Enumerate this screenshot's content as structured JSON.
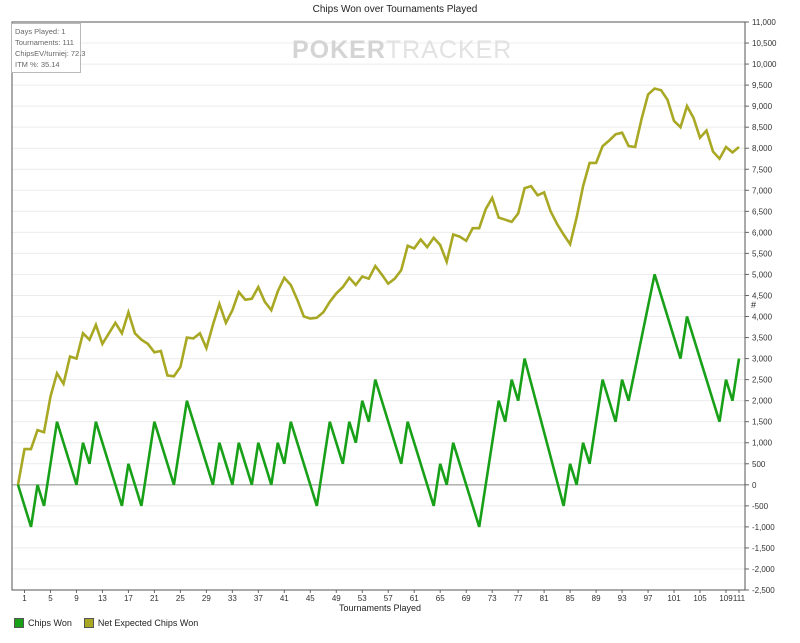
{
  "chart_data": {
    "type": "line",
    "title": "Chips Won over Tournaments Played",
    "xlabel": "Tournaments Played",
    "ylabel": "#",
    "xlim": [
      0,
      111
    ],
    "ylim": [
      -2500,
      11000
    ],
    "x_ticks": [
      1,
      5,
      9,
      13,
      17,
      21,
      25,
      29,
      33,
      37,
      41,
      45,
      49,
      53,
      57,
      61,
      65,
      69,
      73,
      77,
      81,
      85,
      89,
      93,
      97,
      101,
      105,
      109,
      111
    ],
    "y_ticks": [
      -2500,
      -2000,
      -1500,
      -1000,
      -500,
      0,
      500,
      1000,
      1500,
      2000,
      2500,
      3000,
      3500,
      4000,
      4500,
      5000,
      5500,
      6000,
      6500,
      7000,
      7500,
      8000,
      8500,
      9000,
      9500,
      10000,
      10500,
      11000
    ],
    "y_tick_labels": [
      "-2,500",
      "-2,000",
      "-1,500",
      "-1,000",
      "-500",
      "0",
      "500",
      "1,000",
      "1,500",
      "2,000",
      "2,500",
      "3,000",
      "3,500",
      "4,000",
      "4,500",
      "5,000",
      "5,500",
      "6,000",
      "6,500",
      "7,000",
      "7,500",
      "8,000",
      "8,500",
      "9,000",
      "9,500",
      "10,000",
      "10,500",
      "11,000"
    ],
    "grid": true,
    "legend_position": "bottom-left",
    "series": [
      {
        "name": "Chips Won",
        "color": "#19a019",
        "points": [
          [
            0,
            0
          ],
          [
            2,
            -1000
          ],
          [
            3,
            0
          ],
          [
            4,
            -500
          ],
          [
            6,
            1500
          ],
          [
            9,
            0
          ],
          [
            10,
            1000
          ],
          [
            11,
            500
          ],
          [
            12,
            1500
          ],
          [
            16,
            -500
          ],
          [
            17,
            500
          ],
          [
            19,
            -500
          ],
          [
            21,
            1500
          ],
          [
            24,
            0
          ],
          [
            26,
            2000
          ],
          [
            30,
            0
          ],
          [
            31,
            1000
          ],
          [
            33,
            0
          ],
          [
            34,
            1000
          ],
          [
            36,
            0
          ],
          [
            37,
            1000
          ],
          [
            39,
            0
          ],
          [
            40,
            1000
          ],
          [
            41,
            500
          ],
          [
            42,
            1500
          ],
          [
            46,
            -500
          ],
          [
            48,
            1500
          ],
          [
            50,
            500
          ],
          [
            51,
            1500
          ],
          [
            52,
            1000
          ],
          [
            53,
            2000
          ],
          [
            54,
            1500
          ],
          [
            55,
            2500
          ],
          [
            59,
            500
          ],
          [
            60,
            1500
          ],
          [
            64,
            -500
          ],
          [
            65,
            500
          ],
          [
            66,
            0
          ],
          [
            67,
            1000
          ],
          [
            71,
            -1000
          ],
          [
            74,
            2000
          ],
          [
            75,
            1500
          ],
          [
            76,
            2500
          ],
          [
            77,
            2000
          ],
          [
            78,
            3000
          ],
          [
            84,
            -500
          ],
          [
            85,
            500
          ],
          [
            86,
            0
          ],
          [
            87,
            1000
          ],
          [
            88,
            500
          ],
          [
            90,
            2500
          ],
          [
            92,
            1500
          ],
          [
            93,
            2500
          ],
          [
            94,
            2000
          ],
          [
            98,
            5000
          ],
          [
            102,
            3000
          ],
          [
            103,
            4000
          ],
          [
            108,
            1500
          ],
          [
            109,
            2500
          ],
          [
            110,
            2000
          ],
          [
            111,
            3000
          ]
        ]
      },
      {
        "name": "Net Expected Chips Won",
        "color": "#a8a825",
        "points": [
          [
            0,
            0
          ],
          [
            1,
            850
          ],
          [
            2,
            850
          ],
          [
            3,
            1300
          ],
          [
            4,
            1250
          ],
          [
            5,
            2100
          ],
          [
            6,
            2650
          ],
          [
            7,
            2400
          ],
          [
            8,
            3050
          ],
          [
            9,
            3000
          ],
          [
            10,
            3600
          ],
          [
            11,
            3450
          ],
          [
            12,
            3800
          ],
          [
            13,
            3350
          ],
          [
            14,
            3600
          ],
          [
            15,
            3850
          ],
          [
            16,
            3600
          ],
          [
            17,
            4100
          ],
          [
            18,
            3600
          ],
          [
            19,
            3450
          ],
          [
            20,
            3350
          ],
          [
            21,
            3150
          ],
          [
            22,
            3180
          ],
          [
            23,
            2600
          ],
          [
            24,
            2580
          ],
          [
            25,
            2800
          ],
          [
            26,
            3500
          ],
          [
            27,
            3480
          ],
          [
            28,
            3600
          ],
          [
            29,
            3250
          ],
          [
            30,
            3800
          ],
          [
            31,
            4300
          ],
          [
            32,
            3850
          ],
          [
            33,
            4150
          ],
          [
            34,
            4580
          ],
          [
            35,
            4400
          ],
          [
            36,
            4420
          ],
          [
            37,
            4700
          ],
          [
            38,
            4350
          ],
          [
            39,
            4150
          ],
          [
            40,
            4600
          ],
          [
            41,
            4920
          ],
          [
            42,
            4750
          ],
          [
            43,
            4400
          ],
          [
            44,
            4000
          ],
          [
            45,
            3950
          ],
          [
            46,
            3970
          ],
          [
            47,
            4100
          ],
          [
            48,
            4350
          ],
          [
            49,
            4550
          ],
          [
            50,
            4700
          ],
          [
            51,
            4920
          ],
          [
            52,
            4750
          ],
          [
            53,
            4950
          ],
          [
            54,
            4900
          ],
          [
            55,
            5200
          ],
          [
            56,
            5000
          ],
          [
            57,
            4780
          ],
          [
            58,
            4900
          ],
          [
            59,
            5100
          ],
          [
            60,
            5680
          ],
          [
            61,
            5620
          ],
          [
            62,
            5830
          ],
          [
            63,
            5650
          ],
          [
            64,
            5870
          ],
          [
            65,
            5700
          ],
          [
            66,
            5300
          ],
          [
            67,
            5950
          ],
          [
            68,
            5900
          ],
          [
            69,
            5800
          ],
          [
            70,
            6100
          ],
          [
            71,
            6100
          ],
          [
            72,
            6550
          ],
          [
            73,
            6820
          ],
          [
            74,
            6350
          ],
          [
            75,
            6300
          ],
          [
            76,
            6250
          ],
          [
            77,
            6450
          ],
          [
            78,
            7050
          ],
          [
            79,
            7100
          ],
          [
            80,
            6880
          ],
          [
            81,
            6950
          ],
          [
            82,
            6500
          ],
          [
            83,
            6200
          ],
          [
            84,
            5950
          ],
          [
            85,
            5720
          ],
          [
            86,
            6350
          ],
          [
            87,
            7100
          ],
          [
            88,
            7650
          ],
          [
            89,
            7650
          ],
          [
            90,
            8050
          ],
          [
            91,
            8180
          ],
          [
            92,
            8330
          ],
          [
            93,
            8370
          ],
          [
            94,
            8050
          ],
          [
            95,
            8030
          ],
          [
            96,
            8700
          ],
          [
            97,
            9280
          ],
          [
            98,
            9420
          ],
          [
            99,
            9380
          ],
          [
            100,
            9150
          ],
          [
            101,
            8650
          ],
          [
            102,
            8500
          ],
          [
            103,
            9000
          ],
          [
            104,
            8720
          ],
          [
            105,
            8250
          ],
          [
            106,
            8420
          ],
          [
            107,
            7920
          ],
          [
            108,
            7750
          ],
          [
            109,
            8030
          ],
          [
            110,
            7900
          ],
          [
            111,
            8030
          ]
        ]
      }
    ],
    "info_box": [
      "Days Played: 1",
      "Tournaments: 111",
      "ChipsEV/turniej: 72.3",
      "ITM %: 35.14"
    ],
    "watermark": {
      "bold": "POKER",
      "light": "TRACKER"
    }
  }
}
